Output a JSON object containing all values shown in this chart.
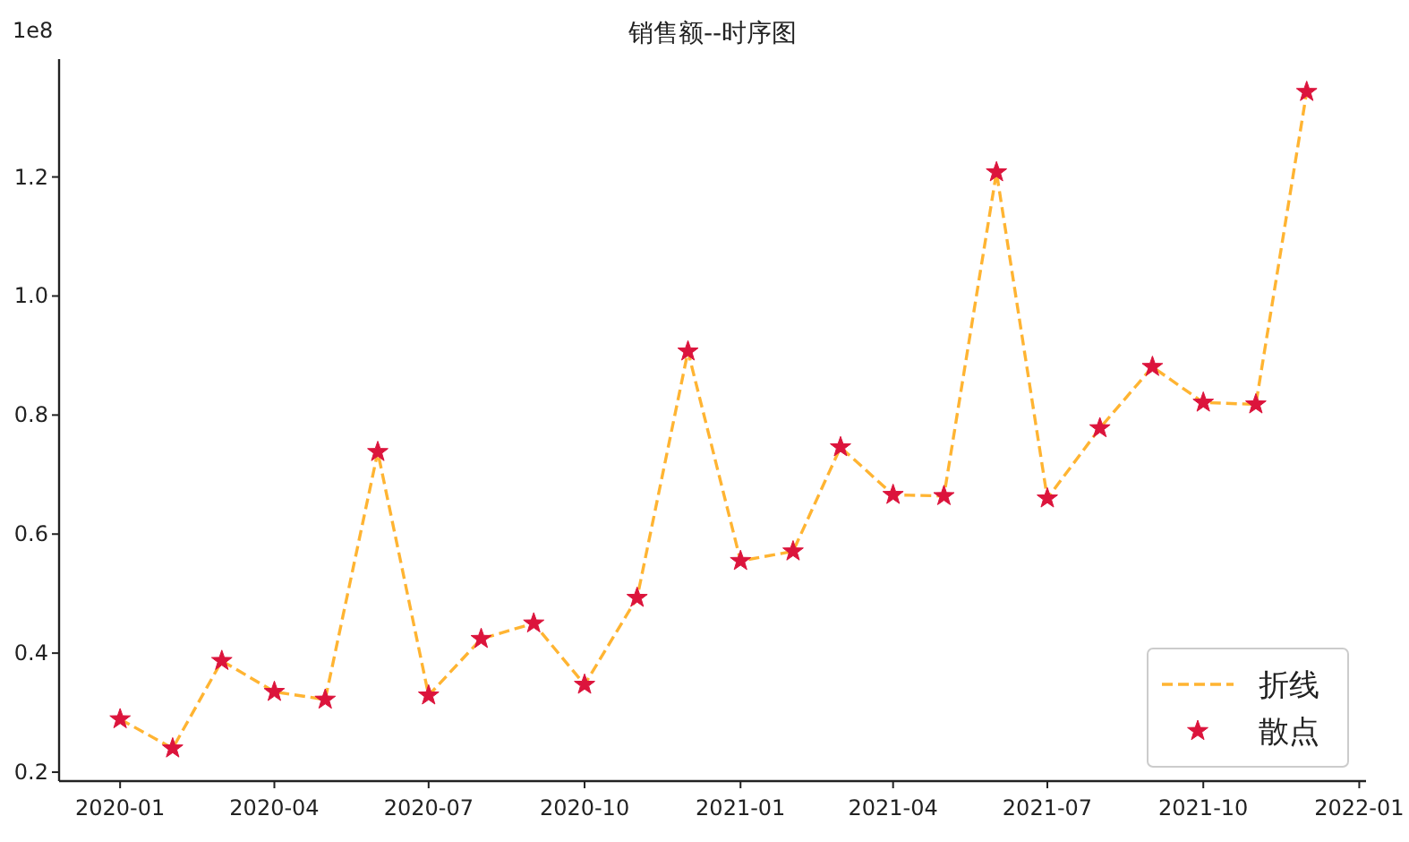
{
  "chart_data": {
    "type": "line",
    "title": "销售额--时序图",
    "x": [
      "2020-01-01",
      "2020-02-01",
      "2020-03-01",
      "2020-04-01",
      "2020-05-01",
      "2020-06-01",
      "2020-07-01",
      "2020-08-01",
      "2020-09-01",
      "2020-10-01",
      "2020-11-01",
      "2020-12-01",
      "2021-01-01",
      "2021-02-01",
      "2021-03-01",
      "2021-04-01",
      "2021-05-01",
      "2021-06-01",
      "2021-07-01",
      "2021-08-01",
      "2021-09-01",
      "2021-10-01",
      "2021-11-01",
      "2021-12-01"
    ],
    "series": [
      {
        "name": "折线",
        "type": "line",
        "color": "#ffb432",
        "line_style": "dashed",
        "marker": "none",
        "values": [
          0.289,
          0.24,
          0.387,
          0.335,
          0.322,
          0.738,
          0.329,
          0.424,
          0.45,
          0.347,
          0.493,
          0.907,
          0.555,
          0.571,
          0.746,
          0.666,
          0.664,
          1.208,
          0.66,
          0.778,
          0.881,
          0.821,
          0.818,
          1.343
        ]
      },
      {
        "name": "散点",
        "type": "scatter",
        "color": "#dc143c",
        "marker": "star",
        "values": [
          0.289,
          0.24,
          0.387,
          0.335,
          0.322,
          0.738,
          0.329,
          0.424,
          0.45,
          0.347,
          0.493,
          0.907,
          0.555,
          0.571,
          0.746,
          0.666,
          0.664,
          1.208,
          0.66,
          0.778,
          0.881,
          0.821,
          0.818,
          1.343
        ]
      }
    ],
    "xlim": [
      "2019-11-26",
      "2022-01-05"
    ],
    "xticks": [
      "2020-01",
      "2020-04",
      "2020-07",
      "2020-10",
      "2021-01",
      "2021-04",
      "2021-07",
      "2021-10",
      "2022-01"
    ],
    "ylim": [
      0.185,
      1.398
    ],
    "yticks": [
      0.2,
      0.4,
      0.6,
      0.8,
      {
        "value": 1.0,
        "label": "1.0"
      },
      1.2
    ],
    "ylabel": "1e8",
    "legend": "bottom right",
    "grid": false
  }
}
